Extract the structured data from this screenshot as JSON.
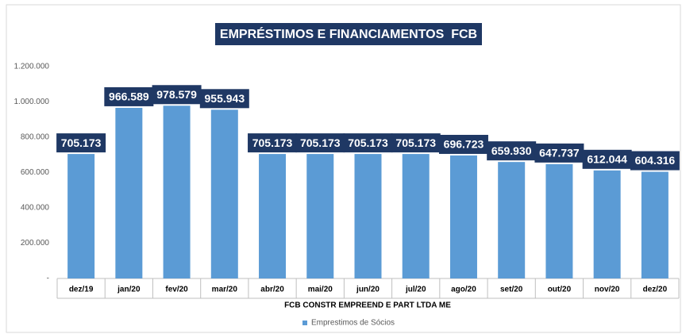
{
  "chart_data": {
    "type": "bar",
    "title": "EMPRÉSTIMOS E FINANCIAMENTOS  FCB",
    "x_label": "FCB CONSTR EMPREEND E PART LTDA ME",
    "categories": [
      "dez/19",
      "jan/20",
      "fev/20",
      "mar/20",
      "abr/20",
      "mai/20",
      "jun/20",
      "jul/20",
      "ago/20",
      "set/20",
      "out/20",
      "nov/20",
      "dez/20"
    ],
    "series": [
      {
        "name": "Emprestimos de Sócios",
        "color": "#5b9bd5",
        "values": [
          705173,
          966589,
          978579,
          955943,
          705173,
          705173,
          705173,
          705173,
          696723,
          659930,
          647737,
          612044,
          604316
        ],
        "value_labels": [
          "705.173",
          "966.589",
          "978.579",
          "955.943",
          "705.173",
          "705.173",
          "705.173",
          "705.173",
          "696.723",
          "659.930",
          "647.737",
          "612.044",
          "604.316"
        ]
      }
    ],
    "ylim": [
      0,
      1200000
    ],
    "yticks": [
      {
        "value": 0,
        "label": "-"
      },
      {
        "value": 200000,
        "label": "200.000"
      },
      {
        "value": 400000,
        "label": "400.000"
      },
      {
        "value": 600000,
        "label": "600.000"
      },
      {
        "value": 800000,
        "label": "800.000"
      },
      {
        "value": 1000000,
        "label": "1.000.000"
      },
      {
        "value": 1200000,
        "label": "1.200.000"
      }
    ],
    "grid": false,
    "legend": "bottom"
  }
}
